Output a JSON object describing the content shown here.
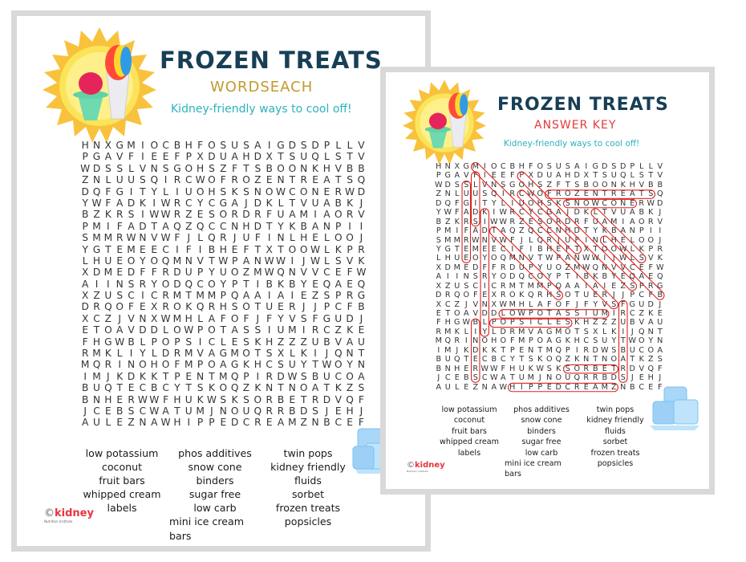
{
  "worksheet": {
    "title": "FROZEN TREATS",
    "subtitle": "WORDSEACH",
    "tagline": "Kidney-friendly ways to cool off!",
    "logo": {
      "brand": "kidney",
      "sub": "Nutrition Institute",
      "copyright": "©"
    }
  },
  "answer_key": {
    "title": "FROZEN TREATS",
    "subtitle": "ANSWER KEY",
    "tagline": "Kidney-friendly ways to cool off!",
    "logo": {
      "brand": "kidney",
      "sub": "Nutrition Institute",
      "copyright": "©"
    }
  },
  "colors": {
    "title": "#173f55",
    "wordsearch_subtitle": "#c29a2e",
    "answer_subtitle": "#e23a3a",
    "tagline": "#2bb3bd",
    "frame": "#d9d9d9",
    "highlight": "#e02020",
    "sun": "#f9c23c"
  },
  "grid": [
    "HNXGMIOCBHFOSUSAIGDSDPLLV",
    "PGAVFIEEFPXDUAHDXTSUQLSTV",
    "WDSSLVNSGOHSZFTSBOONKHVBB",
    "ZNLUUSQIRCWOFROZENTREATSQ",
    "DQFGITYLIUOHSKSNOWCONERWD",
    "YWFADKIWRCYCGAJDKLTVUABKJ",
    "BZKRSIWWRZESORDRFUAMIAORV",
    "PMIFADTAQZQCCNHDTYKBANPII",
    "SMMRWNVWFJLQRJUFINLHELOOJ",
    "YGTEMEECIFIBHEFTXTOOWLKPR",
    "LHUEOYOQMNVTWPANWWIJWLSVK",
    "XDMEDFFRDUPYUOZMWQNVVCEFW",
    "AIINSRYODQCOYPTIBKBYEQAEQ",
    "XZUSCICRMTMMPQAAIAIEZSPRG",
    "DRQOFEXROKQRHSOTUERJJPCFB",
    "XCZJVNXWMHLAFOFJFYVSFGUDJ",
    "ETOAVDDLOWPOTASSIUMIRCZKE",
    "FHGWBLPOPSICLESKHZZZUBVAU",
    "RMKLIYLDRMVAGMOTSXLKIJQNT",
    "MQRINOHOFMPOAGKHCSUYTWOYN",
    "IMJKDKKTPENTMQPIRDWSBUCOA",
    "BUQTECBCYTSKOQZKNTNOATKZS",
    "BNHERWWFHUKWSKSORBETRDVQF",
    "JCEBSCWATUMJNOUQRRBDSJEHJ",
    "AULEZNAWHIPPEDCREAMZNBCEF"
  ],
  "word_list": {
    "columns": [
      [
        "low potassium",
        "coconut",
        "fruit bars",
        "whipped cream",
        "labels"
      ],
      [
        "phos additives",
        "snow cone",
        "binders",
        "sugar free",
        "low carb",
        "mini ice cream bars"
      ],
      [
        "twin pops",
        "kidney friendly",
        "fluids",
        "sorbet",
        "frozen treats",
        "popsicles"
      ]
    ]
  },
  "answers": [
    {
      "word": "FROZEN TREATS",
      "start": [
        3,
        12
      ],
      "end": [
        3,
        23
      ]
    },
    {
      "word": "SNOW CONE",
      "start": [
        4,
        14
      ],
      "end": [
        4,
        21
      ]
    },
    {
      "word": "LOW POTASSIUM",
      "start": [
        16,
        7
      ],
      "end": [
        16,
        18
      ]
    },
    {
      "word": "POPSICLES",
      "start": [
        17,
        6
      ],
      "end": [
        17,
        14
      ]
    },
    {
      "word": "SORBET",
      "start": [
        22,
        14
      ],
      "end": [
        22,
        19
      ]
    },
    {
      "word": "WHIPPED CREAM",
      "start": [
        24,
        8
      ],
      "end": [
        24,
        19
      ]
    },
    {
      "word": "SUGAR FREE",
      "start": [
        2,
        3
      ],
      "end": [
        10,
        3
      ]
    },
    {
      "word": "FLUIDS",
      "start": [
        1,
        4
      ],
      "end": [
        6,
        4
      ]
    },
    {
      "word": "KIDNEY FRIENDLY",
      "start": [
        5,
        5
      ],
      "end": [
        18,
        5
      ]
    },
    {
      "word": "BINDERS",
      "start": [
        17,
        4
      ],
      "end": [
        23,
        4
      ]
    },
    {
      "word": "FRUIT BARS",
      "start": [
        15,
        20
      ],
      "end": [
        23,
        20
      ]
    },
    {
      "word": "MINI ICE CREAM BARS",
      "start": [
        0,
        4
      ],
      "end": [
        15,
        19
      ]
    },
    {
      "word": "PHOS ADDITIVES",
      "start": [
        1,
        9
      ],
      "end": [
        13,
        21
      ]
    },
    {
      "word": "COCONUT",
      "start": [
        3,
        9
      ],
      "end": [
        9,
        15
      ]
    },
    {
      "word": "LABELS",
      "start": [
        5,
        17
      ],
      "end": [
        10,
        22
      ]
    },
    {
      "word": "LOW CARB",
      "start": [
        8,
        18
      ],
      "end": [
        14,
        24
      ]
    },
    {
      "word": "TWIN POPS",
      "start": [
        7,
        6
      ],
      "end": [
        14,
        13
      ]
    }
  ]
}
